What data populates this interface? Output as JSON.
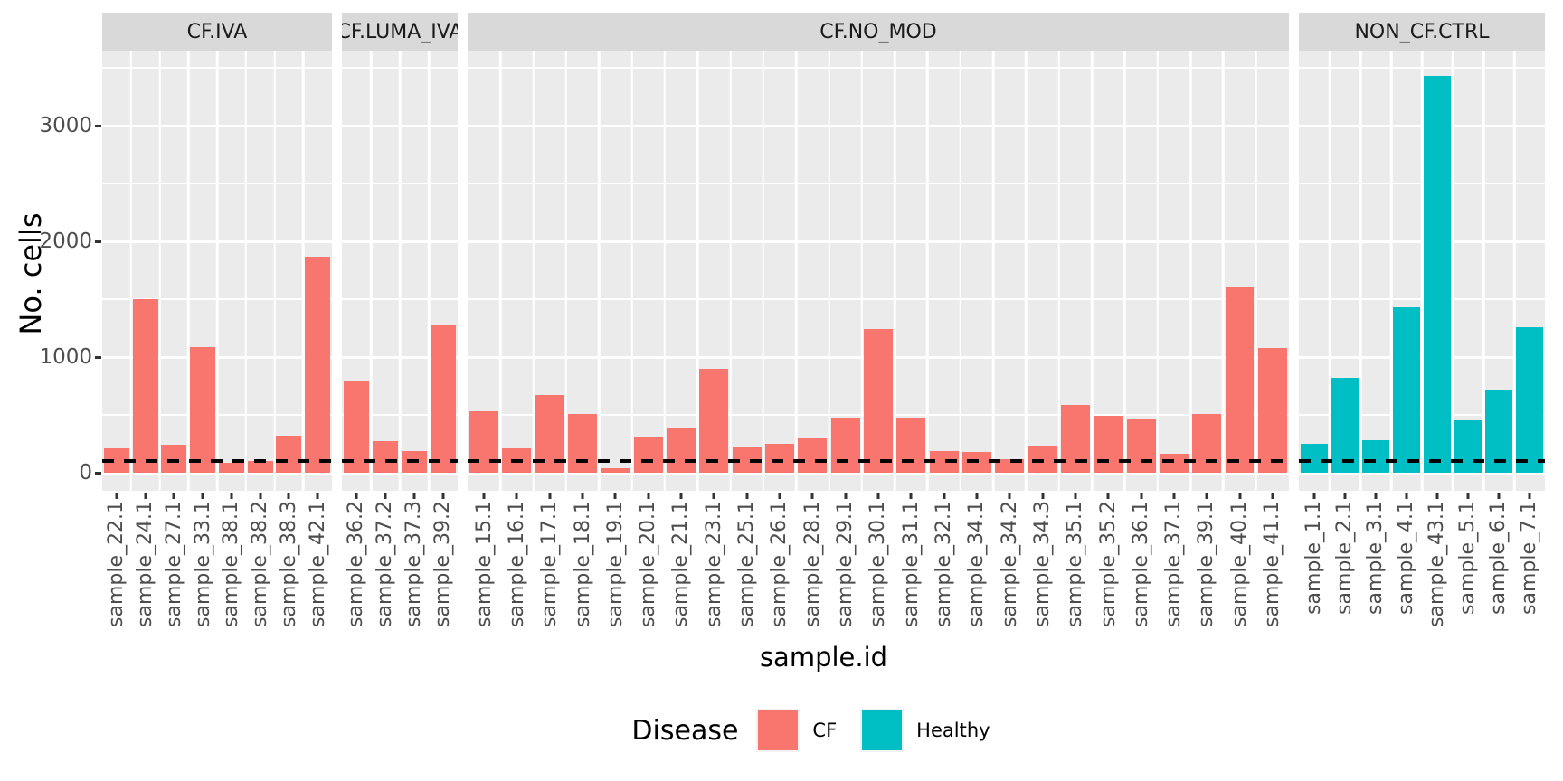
{
  "chart_data": {
    "type": "bar",
    "title": "",
    "xlabel": "sample.id",
    "ylabel": "No. cells",
    "ylim": [
      0,
      3650
    ],
    "yticks": [
      0,
      1000,
      2000,
      3000
    ],
    "minor_yticks": [
      500,
      1500,
      2500,
      3500
    ],
    "grid": true,
    "panel_bg": "#EBEBEB",
    "strip_bg": "#D9D9D9",
    "gridline_color": "#FFFFFF",
    "dashed_hline": {
      "value": 100,
      "color": "#000000",
      "style": "dashed"
    },
    "legend": {
      "title": "Disease",
      "position": "bottom",
      "entries": [
        {
          "label": "CF",
          "color": "#F8766D"
        },
        {
          "label": "Healthy",
          "color": "#00BFC4"
        }
      ]
    },
    "facets": [
      {
        "label": "CF.IVA",
        "disease": "CF",
        "color": "#F8766D",
        "samples": [
          "sample_22.1",
          "sample_24.1",
          "sample_27.1",
          "sample_33.1",
          "sample_38.1",
          "sample_38.2",
          "sample_38.3",
          "sample_42.1"
        ],
        "values": [
          210,
          1500,
          245,
          1090,
          90,
          100,
          320,
          1870
        ]
      },
      {
        "label": "CF.LUMA_IVA",
        "disease": "CF",
        "color": "#F8766D",
        "samples": [
          "sample_36.2",
          "sample_37.2",
          "sample_37.3",
          "sample_39.2"
        ],
        "values": [
          800,
          275,
          185,
          1280
        ]
      },
      {
        "label": "CF.NO_MOD",
        "disease": "CF",
        "color": "#F8766D",
        "samples": [
          "sample_15.1",
          "sample_16.1",
          "sample_17.1",
          "sample_18.1",
          "sample_19.1",
          "sample_20.1",
          "sample_21.1",
          "sample_23.1",
          "sample_25.1",
          "sample_26.1",
          "sample_28.1",
          "sample_29.1",
          "sample_30.1",
          "sample_31.1",
          "sample_32.1",
          "sample_34.1",
          "sample_34.2",
          "sample_34.3",
          "sample_35.1",
          "sample_35.2",
          "sample_36.1",
          "sample_37.1",
          "sample_39.1",
          "sample_40.1",
          "sample_41.1"
        ],
        "values": [
          530,
          215,
          670,
          510,
          40,
          310,
          390,
          900,
          230,
          250,
          295,
          475,
          1245,
          475,
          190,
          180,
          115,
          235,
          585,
          490,
          465,
          165,
          505,
          1605,
          1075
        ]
      },
      {
        "label": "NON_CF.CTRL",
        "disease": "Healthy",
        "color": "#00BFC4",
        "samples": [
          "sample_1.1",
          "sample_2.1",
          "sample_3.1",
          "sample_4.1",
          "sample_43.1",
          "sample_5.1",
          "sample_6.1",
          "sample_7.1"
        ],
        "values": [
          250,
          820,
          280,
          1430,
          3430,
          450,
          715,
          1255
        ]
      }
    ]
  }
}
